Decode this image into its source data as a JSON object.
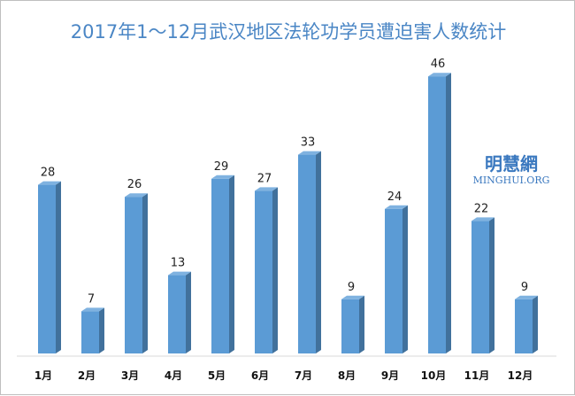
{
  "chart_data": {
    "type": "bar",
    "title": "2017年1～12月武汉地区法轮功学员遭迫害人数统计",
    "xlabel": "",
    "ylabel": "",
    "categories": [
      "1月",
      "2月",
      "3月",
      "4月",
      "5月",
      "6月",
      "7月",
      "8月",
      "9月",
      "10月",
      "11月",
      "12月"
    ],
    "values": [
      28,
      7,
      26,
      13,
      29,
      27,
      33,
      9,
      24,
      46,
      22,
      9
    ],
    "ylim": [
      0,
      48
    ],
    "grid": false,
    "legend": "none",
    "colors": {
      "bar_front": "#5b9bd5",
      "bar_side": "#41719c",
      "bar_top": "#7fb2e0",
      "title": "#4a86c5"
    }
  },
  "watermark": {
    "name_cn": "明慧網",
    "name_en": "MINGHUI.ORG"
  }
}
